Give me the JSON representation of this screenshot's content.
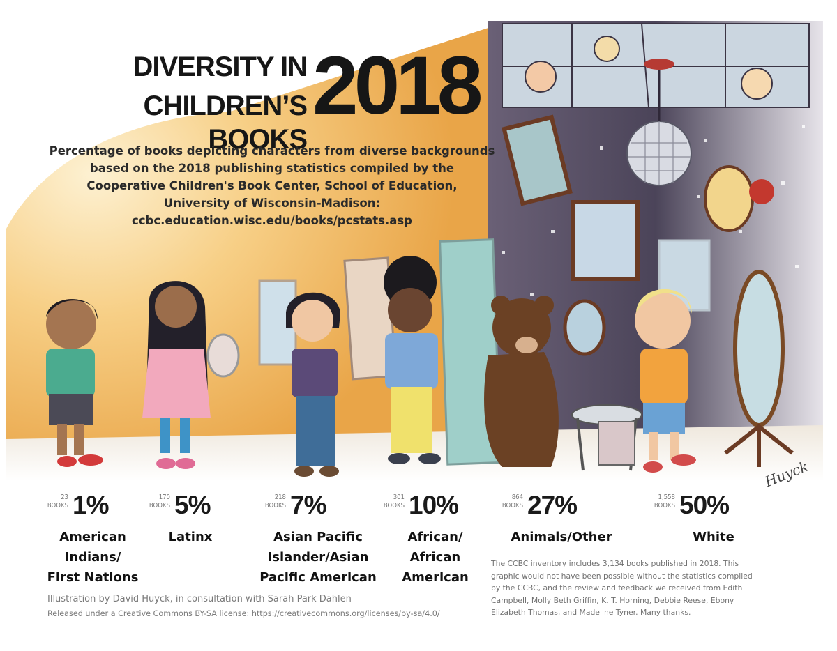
{
  "title": {
    "line1": "DIVERSITY IN",
    "line2": "CHILDREN’S BOOKS",
    "year": "2018"
  },
  "subtitle": {
    "lines": [
      "Percentage of books depicting characters from diverse backgrounds",
      "based on the 2018 publishing statistics compiled by the",
      "Cooperative Children's Book Center, School of Education,",
      "University of Wisconsin-Madison:",
      "ccbc.education.wisc.edu/books/pcstats.asp"
    ]
  },
  "books_unit": "BOOKS",
  "chart_data": {
    "type": "table",
    "categories": [
      "American Indians/ First Nations",
      "Latinx",
      "Asian Pacific Islander/Asian Pacific American",
      "African/ African American",
      "Animals/Other",
      "White"
    ],
    "series": [
      {
        "name": "BOOKS",
        "values": [
          23,
          170,
          218,
          301,
          864,
          1558
        ]
      },
      {
        "name": "%",
        "values": [
          1,
          5,
          7,
          10,
          27,
          50
        ]
      }
    ],
    "items": [
      {
        "books": "23",
        "percent": "1%",
        "label_lines": [
          "American",
          "Indians/",
          "First Nations"
        ]
      },
      {
        "books": "170",
        "percent": "5%",
        "label_lines": [
          "Latinx"
        ]
      },
      {
        "books": "218",
        "percent": "7%",
        "label_lines": [
          "Asian Pacific",
          "Islander/Asian",
          "Pacific American"
        ]
      },
      {
        "books": "301",
        "percent": "10%",
        "label_lines": [
          "African/",
          "African",
          "American"
        ]
      },
      {
        "books": "864",
        "percent": "27%",
        "label_lines": [
          "Animals/Other"
        ]
      },
      {
        "books": "1,558",
        "percent": "50%",
        "label_lines": [
          "White"
        ]
      }
    ]
  },
  "credits": {
    "illustration": "Illustration by David Huyck, in consultation with Sarah Park Dahlen",
    "license": "Released under a Creative Commons BY-SA license: https://creativecommons.org/licenses/by-sa/4.0/"
  },
  "note": {
    "lines": [
      "The CCBC inventory includes 3,134 books published in 2018. This",
      "graphic would not have been possible without the statistics compiled",
      "by the CCBC, and the review and feedback we received from Edith",
      "Campbell, Molly Beth Griffin, K. T. Horning, Debbie Reese, Ebony",
      "Elizabeth Thomas, and Madeline Tyner. Many thanks."
    ]
  },
  "signature": "Huyck",
  "colors": {
    "warm_bg": "#f2b24e",
    "warm_light": "#fbe6b8",
    "dark_bg": "#4f4860",
    "floor": "#f3efe9",
    "text": "#1a1a1a"
  }
}
